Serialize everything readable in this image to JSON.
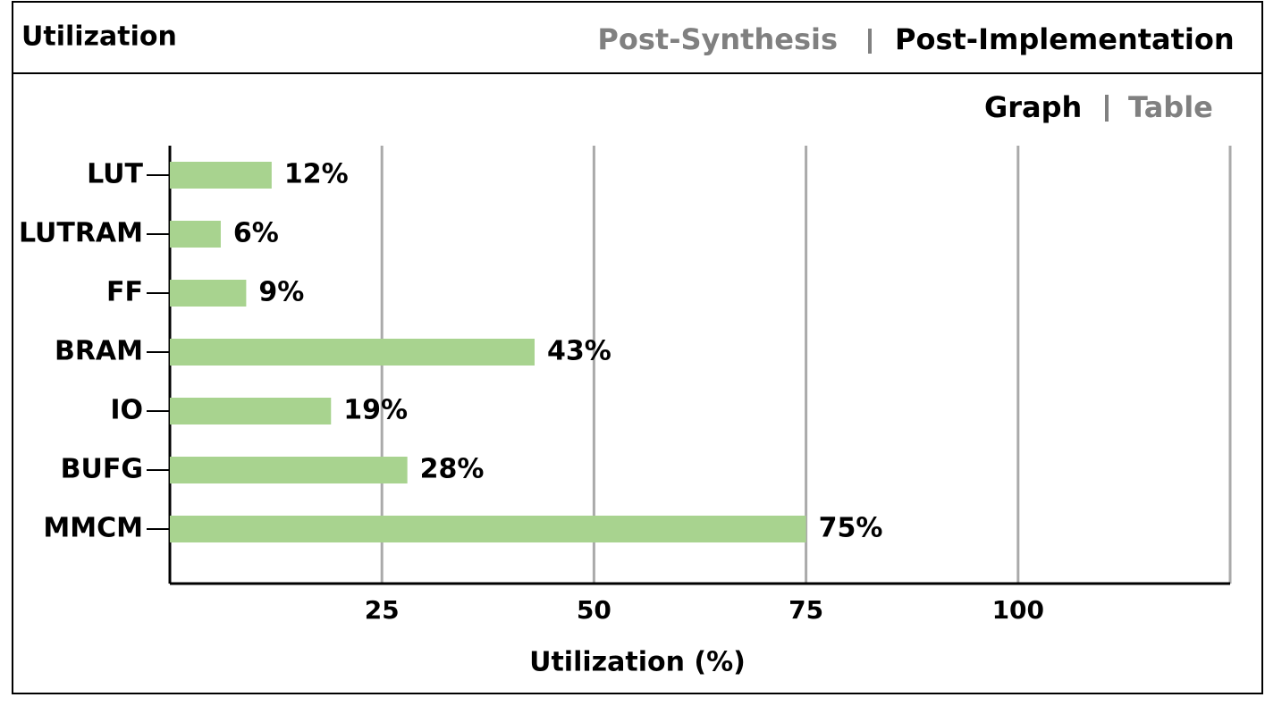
{
  "header": {
    "title": "Utilization",
    "tabs": [
      "Post-Synthesis",
      "Post-Implementation"
    ]
  },
  "view_tabs": [
    "Graph",
    "Table"
  ],
  "chart_data": {
    "type": "bar",
    "orientation": "horizontal",
    "categories": [
      "LUT",
      "LUTRAM",
      "FF",
      "BRAM",
      "IO",
      "BUFG",
      "MMCM"
    ],
    "values": [
      12,
      6,
      9,
      43,
      19,
      28,
      75
    ],
    "value_labels": [
      "12%",
      "6%",
      "9%",
      "43%",
      "19%",
      "28%",
      "75%"
    ],
    "color": "#a8d38f",
    "xlim": [
      0,
      125
    ],
    "xticks": [
      25,
      50,
      75,
      100
    ],
    "x_label": "Utilization (%)",
    "grid": true
  }
}
